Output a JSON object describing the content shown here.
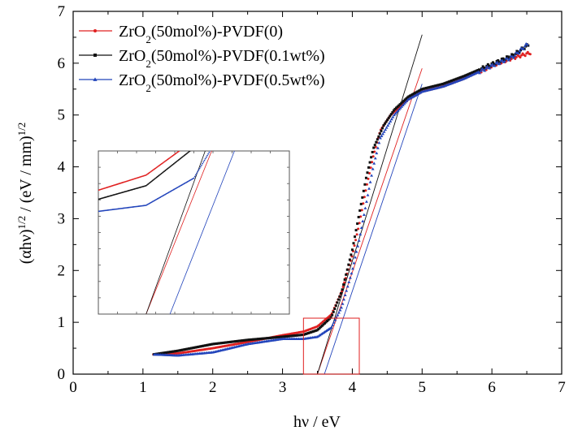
{
  "chart_data": {
    "type": "scatter",
    "xlabel": "hν / eV",
    "ylabel": "(αhν)^1/2 / (eV / mm)^1/2",
    "xlim": [
      0,
      7
    ],
    "ylim": [
      0,
      7
    ],
    "x_ticks": [
      "0",
      "1",
      "2",
      "3",
      "4",
      "5",
      "6",
      "7"
    ],
    "y_ticks": [
      "0",
      "1",
      "2",
      "3",
      "4",
      "5",
      "6",
      "7"
    ],
    "grid": false,
    "legend_position": "top-left",
    "series": [
      {
        "name": "ZrO2(50mol%)-PVDF(0)",
        "name_parts": {
          "pre": "ZrO",
          "sub": "2",
          "post": "(50mol%)-PVDF(0)"
        },
        "color": "#e02020",
        "marker": "circle",
        "points": [
          [
            1.15,
            0.38
          ],
          [
            1.5,
            0.4
          ],
          [
            2.0,
            0.5
          ],
          [
            2.5,
            0.62
          ],
          [
            3.0,
            0.75
          ],
          [
            3.3,
            0.82
          ],
          [
            3.5,
            0.92
          ],
          [
            3.7,
            1.15
          ],
          [
            3.85,
            1.6
          ],
          [
            4.0,
            2.3
          ],
          [
            4.1,
            2.9
          ],
          [
            4.2,
            3.6
          ],
          [
            4.3,
            4.2
          ],
          [
            4.4,
            4.7
          ],
          [
            4.55,
            5.0
          ],
          [
            4.8,
            5.3
          ],
          [
            5.0,
            5.45
          ],
          [
            5.3,
            5.55
          ],
          [
            5.6,
            5.7
          ],
          [
            6.0,
            5.95
          ],
          [
            6.3,
            6.1
          ],
          [
            6.55,
            6.2
          ]
        ],
        "tangent": [
          [
            3.5,
            0
          ],
          [
            5.0,
            5.9
          ]
        ]
      },
      {
        "name": "ZrO2(50mol%)-PVDF(0.1wt%)",
        "name_parts": {
          "pre": "ZrO",
          "sub": "2",
          "post": "(50mol%)-PVDF(0.1wt%)"
        },
        "color": "#111111",
        "marker": "square",
        "points": [
          [
            1.15,
            0.38
          ],
          [
            1.5,
            0.45
          ],
          [
            2.0,
            0.58
          ],
          [
            2.5,
            0.66
          ],
          [
            3.0,
            0.72
          ],
          [
            3.3,
            0.76
          ],
          [
            3.5,
            0.85
          ],
          [
            3.7,
            1.1
          ],
          [
            3.85,
            1.6
          ],
          [
            4.0,
            2.4
          ],
          [
            4.1,
            3.1
          ],
          [
            4.2,
            3.8
          ],
          [
            4.3,
            4.35
          ],
          [
            4.45,
            4.8
          ],
          [
            4.6,
            5.1
          ],
          [
            4.8,
            5.35
          ],
          [
            5.0,
            5.5
          ],
          [
            5.3,
            5.6
          ],
          [
            5.6,
            5.75
          ],
          [
            6.0,
            5.98
          ],
          [
            6.3,
            6.15
          ],
          [
            6.52,
            6.35
          ]
        ],
        "tangent": [
          [
            3.5,
            0
          ],
          [
            5.0,
            6.55
          ]
        ]
      },
      {
        "name": "ZrO2(50mol%)-PVDF(0.5wt%)",
        "name_parts": {
          "pre": "ZrO",
          "sub": "2",
          "post": "(50mol%)-PVDF(0.5wt%)"
        },
        "color": "#2244bb",
        "marker": "triangle",
        "points": [
          [
            1.15,
            0.38
          ],
          [
            1.5,
            0.36
          ],
          [
            2.0,
            0.42
          ],
          [
            2.5,
            0.58
          ],
          [
            3.0,
            0.68
          ],
          [
            3.3,
            0.68
          ],
          [
            3.5,
            0.72
          ],
          [
            3.7,
            0.9
          ],
          [
            3.85,
            1.3
          ],
          [
            4.0,
            2.0
          ],
          [
            4.1,
            2.6
          ],
          [
            4.2,
            3.3
          ],
          [
            4.3,
            4.0
          ],
          [
            4.4,
            4.55
          ],
          [
            4.6,
            5.0
          ],
          [
            4.8,
            5.3
          ],
          [
            5.0,
            5.45
          ],
          [
            5.3,
            5.55
          ],
          [
            5.6,
            5.7
          ],
          [
            6.0,
            5.95
          ],
          [
            6.3,
            6.12
          ],
          [
            6.52,
            6.38
          ]
        ],
        "tangent": [
          [
            3.6,
            0
          ],
          [
            5.0,
            5.6
          ]
        ]
      }
    ],
    "highlight_box": {
      "x": [
        3.3,
        4.1
      ],
      "y": [
        0,
        1.08
      ],
      "color": "#e02020"
    },
    "inset": {
      "x_range": [
        3.3,
        4.1
      ],
      "y_range": [
        0,
        1.08
      ],
      "border": "#555555"
    }
  }
}
